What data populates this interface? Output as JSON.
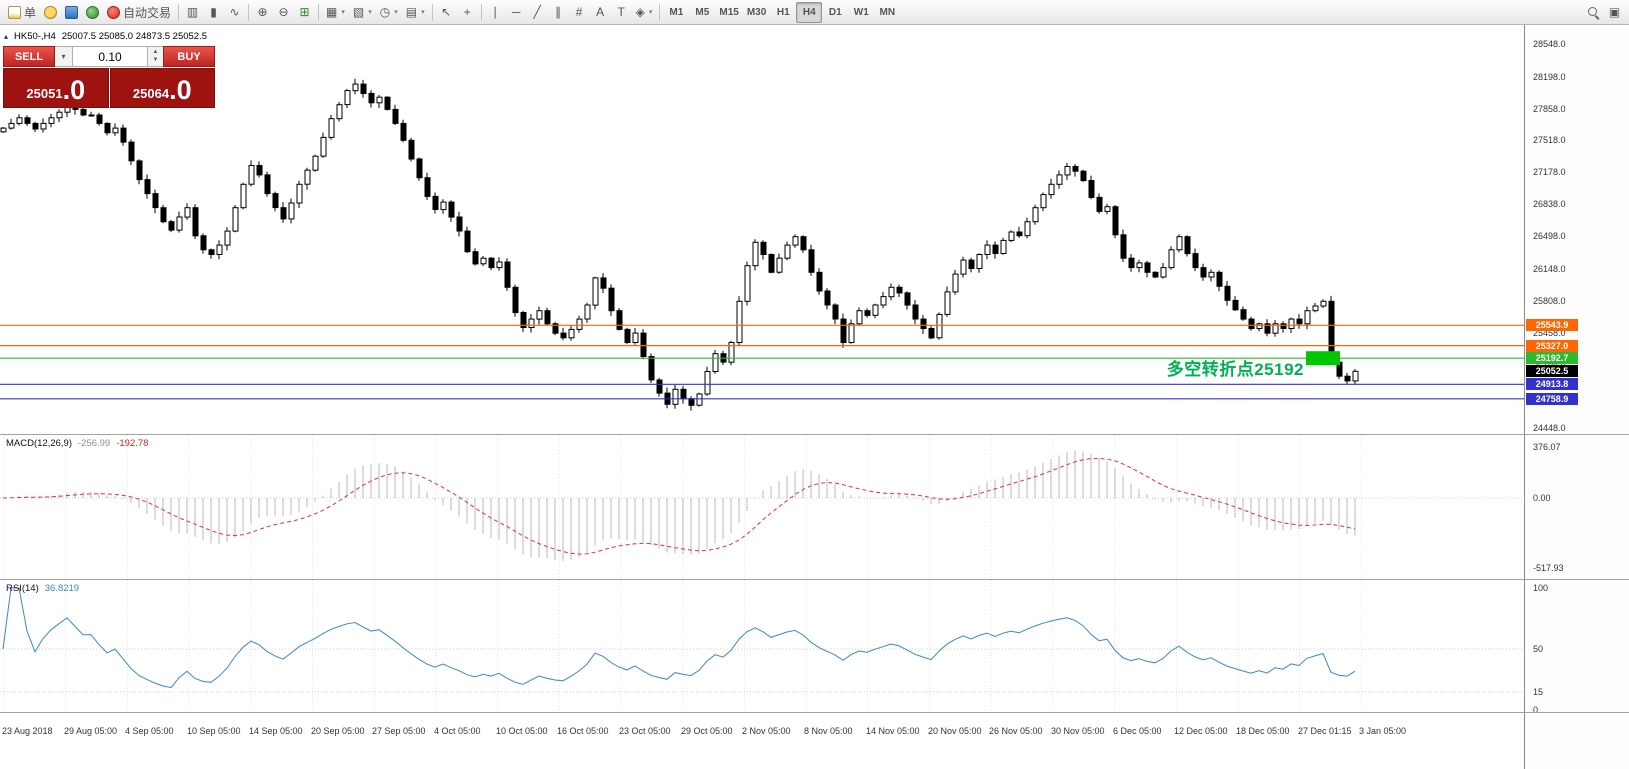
{
  "toolbar": {
    "buttons_left": [
      {
        "name": "new-order-button",
        "icon": "order",
        "label": "单"
      },
      {
        "name": "market-watch-button",
        "icon": "coins"
      },
      {
        "name": "chart-window-button",
        "icon": "chart"
      },
      {
        "name": "navigator-button",
        "icon": "globe"
      },
      {
        "name": "auto-trading-button",
        "icon": "red-dot",
        "label": "自动交易"
      },
      {
        "sep": true
      },
      {
        "name": "bar-chart-button",
        "glyph": "▥"
      },
      {
        "name": "candlestick-chart-button",
        "glyph": "▮"
      },
      {
        "name": "line-chart-button",
        "glyph": "∿"
      },
      {
        "sep": true
      },
      {
        "name": "zoom-in-button",
        "glyph": "⊕"
      },
      {
        "name": "zoom-out-button",
        "glyph": "⊖"
      },
      {
        "name": "tile-windows-button",
        "glyph": "⊞",
        "glyph_color": "#2e8b2e"
      },
      {
        "sep": true
      },
      {
        "name": "arrange-charts-button",
        "glyph": "▦",
        "dropdown": true
      },
      {
        "name": "new-chart-button",
        "glyph": "▧",
        "dropdown": true
      },
      {
        "name": "periods-button",
        "glyph": "◷",
        "dropdown": true
      },
      {
        "name": "templates-button",
        "glyph": "▤",
        "dropdown": true
      },
      {
        "sep": true
      },
      {
        "name": "cursor-button",
        "glyph": "↖"
      },
      {
        "name": "crosshair-button",
        "glyph": "+"
      },
      {
        "sep": true
      },
      {
        "name": "vertical-line-button",
        "glyph": "∣"
      },
      {
        "name": "horizontal-line-button",
        "glyph": "─"
      },
      {
        "name": "trendline-button",
        "glyph": "╱"
      },
      {
        "name": "channel-button",
        "glyph": "∥"
      },
      {
        "name": "fibonacci-button",
        "glyph": "#"
      },
      {
        "name": "text-button",
        "glyph": "A"
      },
      {
        "name": "text-label-button",
        "glyph": "T"
      },
      {
        "name": "arrows-button",
        "glyph": "◈",
        "dropdown": true
      },
      {
        "sep": true
      }
    ],
    "timeframes": [
      {
        "name": "timeframe-m1-button",
        "label": "M1"
      },
      {
        "name": "timeframe-m5-button",
        "label": "M5"
      },
      {
        "name": "timeframe-m15-button",
        "label": "M15"
      },
      {
        "name": "timeframe-m30-button",
        "label": "M30"
      },
      {
        "name": "timeframe-h1-button",
        "label": "H1"
      },
      {
        "name": "timeframe-h4-button",
        "label": "H4",
        "active": true
      },
      {
        "name": "timeframe-d1-button",
        "label": "D1"
      },
      {
        "name": "timeframe-w1-button",
        "label": "W1"
      },
      {
        "name": "timeframe-mn-button",
        "label": "MN"
      }
    ],
    "buttons_right": [
      {
        "name": "search-button",
        "icon": "search"
      },
      {
        "name": "toggle-panel-button",
        "glyph": "▣"
      }
    ]
  },
  "chart": {
    "symbol": "HK50-,H4",
    "ohlc": "25007.5 25085.0 24873.5 25052.5",
    "one_click": {
      "sell_label": "SELL",
      "buy_label": "BUY",
      "volume": "0.10",
      "sell_price_main": "25051",
      "sell_price_pips": ".0",
      "buy_price_main": "25064",
      "buy_price_pips": ".0"
    },
    "annotation": {
      "text": "多空转折点25192",
      "color": "#00b050",
      "box_color": "#00c800",
      "box_price": 25192.7
    },
    "levels": [
      {
        "price": 25543.9,
        "label": "25543.9",
        "color": "#ff6600",
        "line": true
      },
      {
        "price": 25327.0,
        "label": "25327.0",
        "color": "#ff6600",
        "line": true
      },
      {
        "price": 25192.7,
        "label": "25192.7",
        "color": "#2eb82e",
        "line": true
      },
      {
        "price": 25052.5,
        "label": "25052.5",
        "color": "#000000",
        "line": false
      },
      {
        "price": 24913.8,
        "label": "24913.8",
        "color": "#3333cc",
        "line": true
      },
      {
        "price": 24758.9,
        "label": "24758.9",
        "color": "#3333cc",
        "line": true
      }
    ],
    "y_axis_ticks": [
      28548.0,
      28198.0,
      27858.0,
      27518.0,
      27178.0,
      26838.0,
      26498.0,
      26148.0,
      25808.0,
      25458.0,
      25108.0,
      24758.0,
      24448.0
    ],
    "x_axis_labels": [
      "23 Aug 2018",
      "29 Aug 05:00",
      "4 Sep 05:00",
      "10 Sep 05:00",
      "14 Sep 05:00",
      "20 Sep 05:00",
      "27 Sep 05:00",
      "4 Oct 05:00",
      "10 Oct 05:00",
      "16 Oct 05:00",
      "23 Oct 05:00",
      "29 Oct 05:00",
      "2 Nov 05:00",
      "8 Nov 05:00",
      "14 Nov 05:00",
      "20 Nov 05:00",
      "26 Nov 05:00",
      "30 Nov 05:00",
      "6 Dec 05:00",
      "12 Dec 05:00",
      "18 Dec 05:00",
      "27 Dec 01:15",
      "3 Jan 05:00"
    ]
  },
  "indicators": {
    "macd": {
      "name": "MACD(12,26,9)",
      "value": "-256.99",
      "signal": "-192.78",
      "axis": [
        376.07,
        0,
        -517.93
      ],
      "histogram_color": "#b8b8b8",
      "signal_color": "#e03131"
    },
    "rsi": {
      "name": "RSI(14)",
      "value": "36.8219",
      "axis": [
        100,
        50,
        15,
        0
      ],
      "line_color": "#3c87c7"
    }
  },
  "chart_data": {
    "type": "candlestick",
    "symbol": "HK50-",
    "timeframe": "H4",
    "current_bar": {
      "open": 25007.5,
      "high": 25085.0,
      "low": 24873.5,
      "close": 25052.5
    },
    "bid": 25052.5,
    "price_range": [
      24448.0,
      28548.0
    ],
    "closes": [
      27650,
      27700,
      27760,
      27700,
      27640,
      27700,
      27760,
      27820,
      27900,
      27850,
      27790,
      27790,
      27700,
      27600,
      27650,
      27500,
      27300,
      27100,
      26950,
      26800,
      26650,
      26560,
      26700,
      26800,
      26500,
      26350,
      26300,
      26400,
      26550,
      26800,
      27050,
      27250,
      27150,
      26950,
      26800,
      26680,
      26850,
      27050,
      27200,
      27350,
      27550,
      27750,
      27900,
      28050,
      28120,
      28020,
      27920,
      27980,
      27850,
      27700,
      27520,
      27320,
      27120,
      26920,
      26780,
      26860,
      26700,
      26550,
      26330,
      26200,
      26260,
      26160,
      26220,
      25950,
      25680,
      25520,
      25610,
      25700,
      25560,
      25460,
      25410,
      25500,
      25610,
      25760,
      26050,
      25940,
      25700,
      25500,
      25360,
      25460,
      25210,
      24960,
      24820,
      24700,
      24860,
      24760,
      24690,
      24810,
      25050,
      25240,
      25150,
      25360,
      25800,
      26180,
      26430,
      26300,
      26110,
      26260,
      26400,
      26490,
      26350,
      26110,
      25910,
      25760,
      25610,
      25360,
      25560,
      25700,
      25650,
      25760,
      25850,
      25950,
      25890,
      25760,
      25610,
      25510,
      25410,
      25660,
      25900,
      26090,
      26240,
      26150,
      26300,
      26400,
      26310,
      26450,
      26540,
      26500,
      26650,
      26800,
      26940,
      27050,
      27150,
      27240,
      27190,
      27090,
      26910,
      26760,
      26810,
      26510,
      26260,
      26160,
      26210,
      26110,
      26060,
      26160,
      26350,
      26490,
      26310,
      26160,
      26060,
      26110,
      25960,
      25810,
      25710,
      25610,
      25510,
      25560,
      25460,
      25560,
      25510,
      25610,
      25560,
      25700,
      25750,
      25800,
      25150,
      25000,
      24950,
      25052.5
    ]
  }
}
